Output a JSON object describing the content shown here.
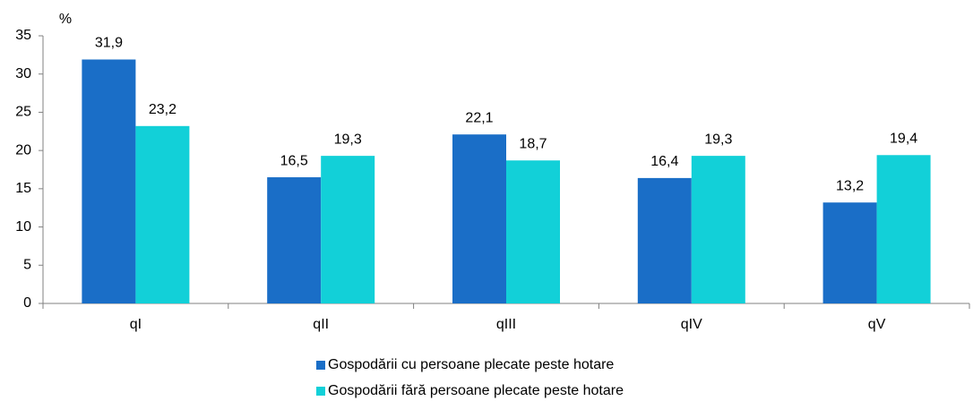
{
  "chart_data": {
    "type": "bar",
    "y_label": "%",
    "categories": [
      "qI",
      "qII",
      "qIII",
      "qIV",
      "qV"
    ],
    "series": [
      {
        "name": "Gospodării cu persoane plecate peste hotare",
        "color": "#1a6ec7",
        "values": [
          31.9,
          16.5,
          22.1,
          16.4,
          13.2
        ],
        "value_labels": [
          "31,9",
          "16,5",
          "22,1",
          "16,4",
          "13,2"
        ]
      },
      {
        "name": "Gospodării fără persoane plecate peste hotare",
        "color": "#12d0d8",
        "values": [
          23.2,
          19.3,
          18.7,
          19.3,
          19.4
        ],
        "value_labels": [
          "23,2",
          "19,3",
          "18,7",
          "19,3",
          "19,4"
        ]
      }
    ],
    "ylim": [
      0,
      35
    ],
    "yticks": [
      0,
      5,
      10,
      15,
      20,
      25,
      30,
      35
    ],
    "grid": false,
    "legend": "bottom"
  }
}
